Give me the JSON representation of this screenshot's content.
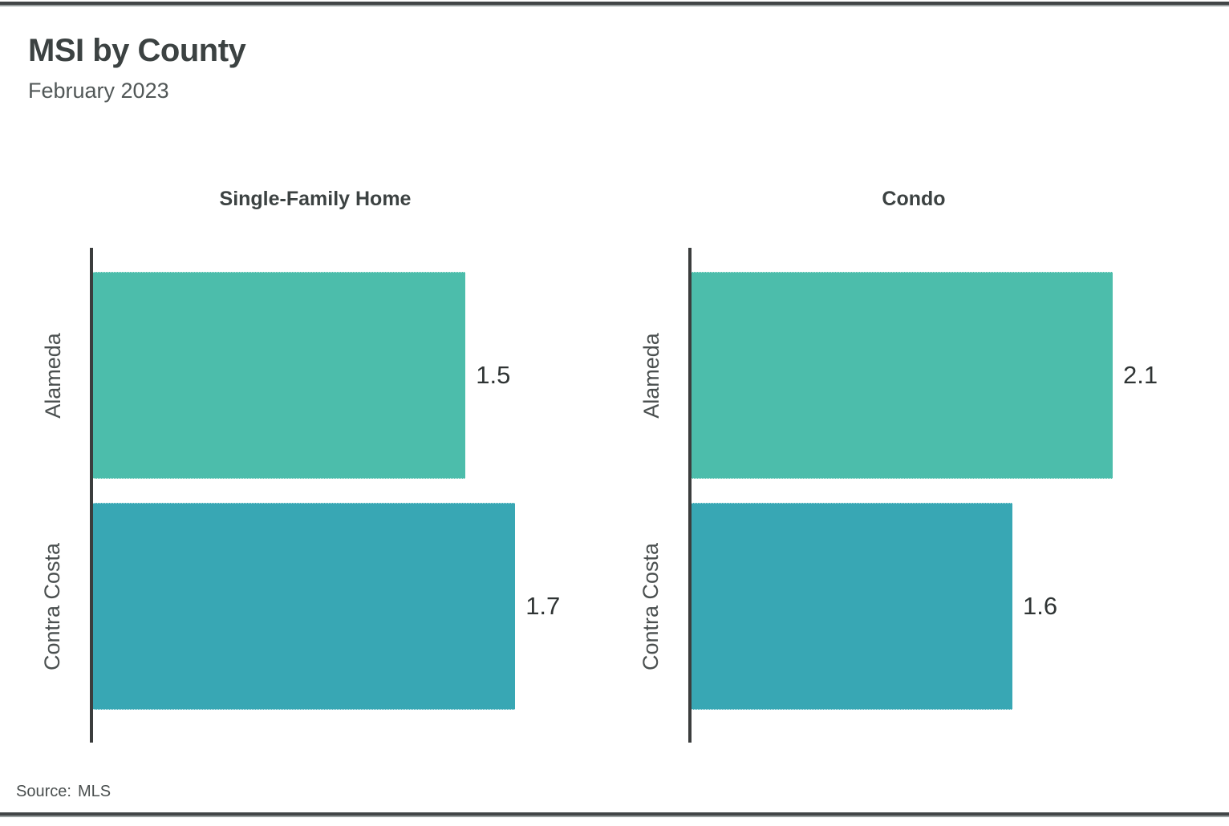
{
  "page": {
    "title": "MSI by County",
    "subtitle": "February 2023",
    "source_label": "Source:",
    "source_value": "MLS"
  },
  "colors": {
    "bars": [
      "#4CBDAB",
      "#38A7B4"
    ],
    "axis": "#3B3D3D",
    "rule": "#414546",
    "title_text": "#3C4242",
    "label_text": "#4A4F4F"
  },
  "chart_data": [
    {
      "type": "bar",
      "orientation": "horizontal",
      "title": "Single-Family Home",
      "categories": [
        "Alameda",
        "Contra Costa"
      ],
      "values": [
        1.5,
        1.7
      ],
      "xlim": [
        0,
        2.1
      ],
      "grid": false,
      "value_labels": "bar-end",
      "legend": "none"
    },
    {
      "type": "bar",
      "orientation": "horizontal",
      "title": "Condo",
      "categories": [
        "Alameda",
        "Contra Costa"
      ],
      "values": [
        2.1,
        1.6
      ],
      "xlim": [
        0,
        2.6
      ],
      "grid": false,
      "value_labels": "bar-end",
      "legend": "none"
    }
  ]
}
